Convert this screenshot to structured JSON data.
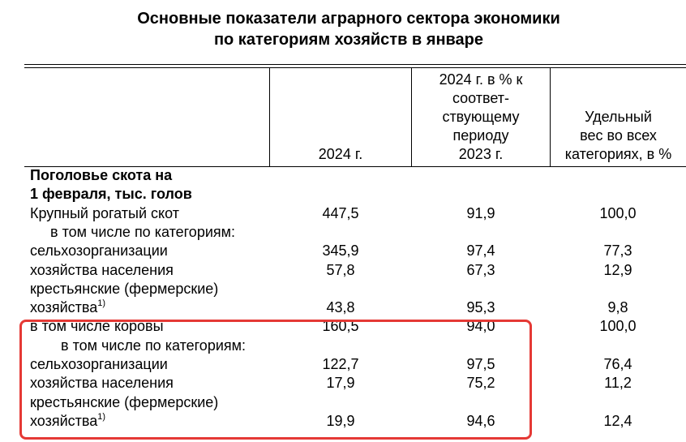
{
  "header": {
    "title_lines": [
      "Основные показатели аграрного сектора экономики",
      "по категориям хозяйств в январе"
    ]
  },
  "table": {
    "columns": [
      [
        "2024 г."
      ],
      [
        "2024 г. в % к",
        "соответ-",
        "ствующему",
        "периоду",
        "2023 г."
      ],
      [
        "Удельный",
        "вес во всех",
        "категориях, в %"
      ]
    ],
    "rows": [
      {
        "cells": [
          "Поголовье скота на"
        ]
      },
      {
        "cells": [
          "1 февраля, тыс. голов"
        ]
      },
      {
        "cells": [
          "Крупный рогатый скот",
          "447,5",
          "91,9",
          "100,0"
        ]
      },
      {
        "cells": [
          "в том числе по категориям:"
        ]
      },
      {
        "cells": [
          "сельхозорганизации",
          "345,9",
          "97,4",
          "77,3"
        ]
      },
      {
        "cells": [
          "хозяйства населения",
          "57,8",
          "67,3",
          "12,9"
        ]
      },
      {
        "cells": [
          "крестьянские (фермерские)"
        ]
      },
      {
        "cells": [
          "хозяйства",
          "43,8",
          "95,3",
          "9,8"
        ],
        "sup": "1)"
      },
      {
        "cells": [
          "в том числе коровы",
          "160,5",
          "94,0",
          "100,0"
        ]
      },
      {
        "cells": [
          "в том числе по категориям:"
        ]
      },
      {
        "cells": [
          "сельхозорганизации",
          "122,7",
          "97,5",
          "76,4"
        ]
      },
      {
        "cells": [
          "хозяйства населения",
          "17,9",
          "75,2",
          "11,2"
        ]
      },
      {
        "cells": [
          "крестьянские (фермерские)"
        ]
      },
      {
        "cells": [
          "хозяйства",
          "19,9",
          "94,6",
          "12,4"
        ],
        "sup": "1)"
      }
    ]
  }
}
